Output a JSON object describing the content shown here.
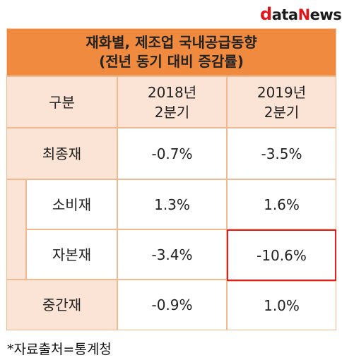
{
  "logo": {
    "d": "d",
    "ata": "ata",
    "N": "N",
    "ews": "ews"
  },
  "table": {
    "title_line1": "재화별, 제조업 국내공급동향",
    "title_line2": "(전년 동기 대비 증감률)",
    "header": {
      "category": "구분",
      "col1_line1": "2018년",
      "col1_line2": "2분기",
      "col2_line1": "2019년",
      "col2_line2": "2분기"
    },
    "rows": [
      {
        "label": "최종재",
        "v2018": "-0.7%",
        "v2019": "-3.5%"
      },
      {
        "label": "소비재",
        "v2018": "1.3%",
        "v2019": "1.6%"
      },
      {
        "label": "자본재",
        "v2018": "-3.4%",
        "v2019": "-10.6%"
      },
      {
        "label": "중간재",
        "v2018": "-0.9%",
        "v2019": "1.0%"
      }
    ]
  },
  "footnote": "*자료출처=통계청",
  "colors": {
    "header_bg": "#f08a3e",
    "peach": "#fbe4d6",
    "border": "#f2b890",
    "highlight": "#e02020",
    "logo_red": "#e0161d"
  }
}
